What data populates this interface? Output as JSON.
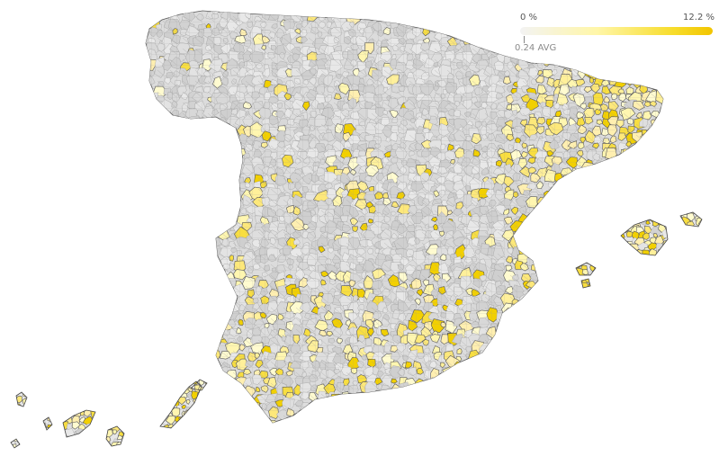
{
  "legend": {
    "min_label": "0 %",
    "max_label": "12.2 %",
    "avg_label": "0.24 AVG",
    "min_value": 0,
    "max_value": 12.2,
    "avg_value": 0.24,
    "colors": {
      "low": "#e4e4e4",
      "mid": "#fff3a0",
      "high": "#f2c500",
      "border": "#333333"
    }
  },
  "map": {
    "subject": "Spain municipalities choropleth",
    "regions": [
      "Iberian Peninsula",
      "Balearic Islands",
      "Canary Islands"
    ]
  }
}
